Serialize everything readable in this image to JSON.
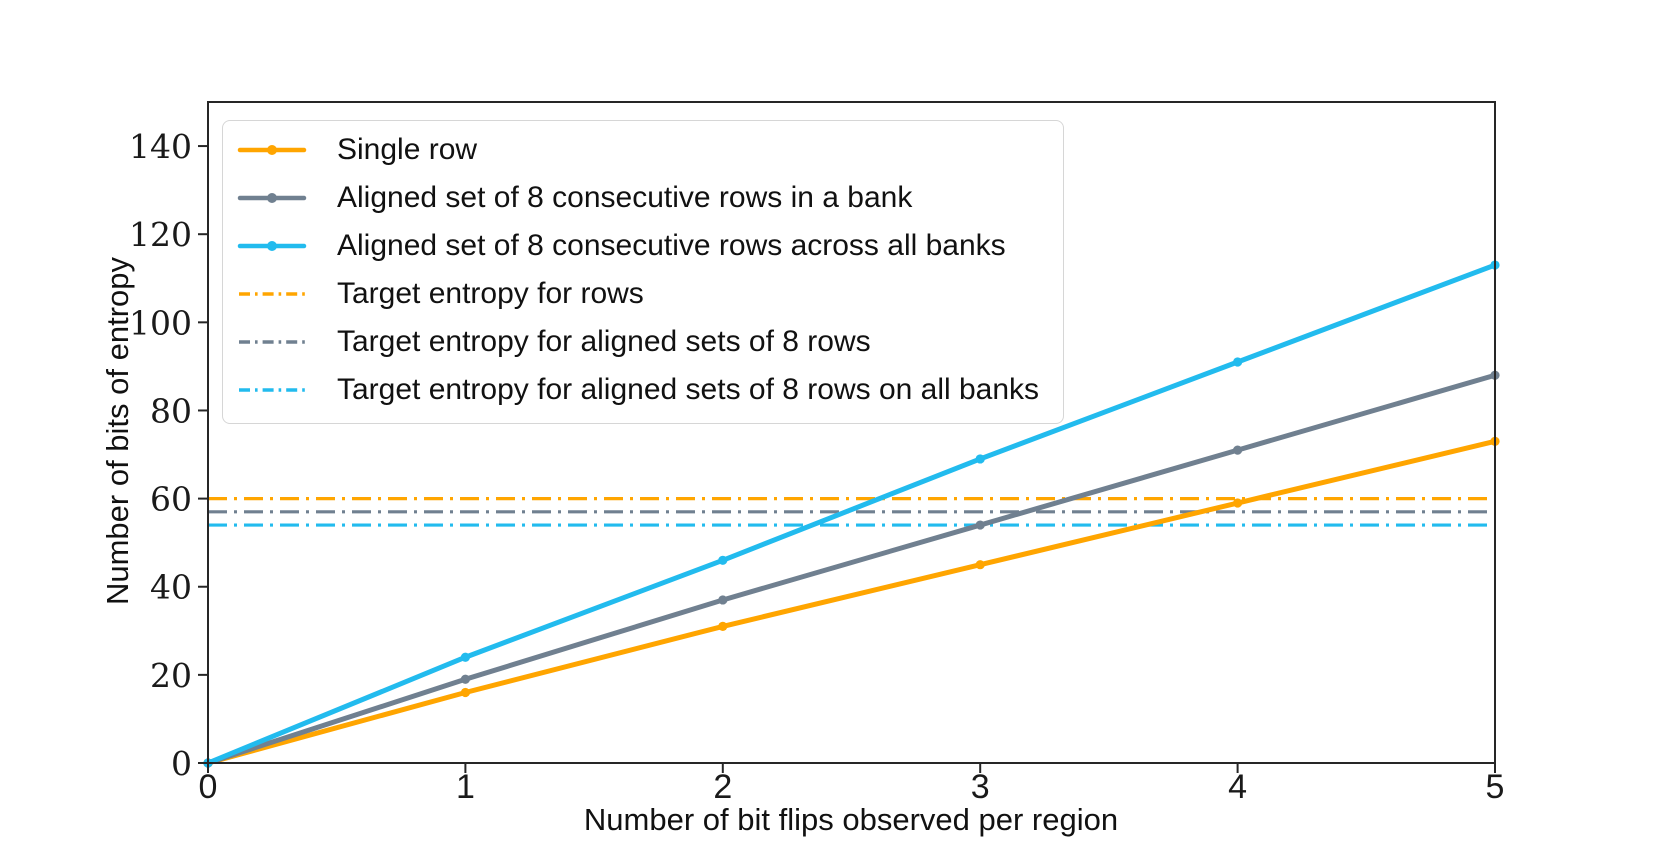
{
  "figure": {
    "background": "#ffffff",
    "spine_color": "#262626",
    "text_color": "#111111"
  },
  "chart_data": {
    "type": "line",
    "title": "",
    "xlabel": "Number of bit flips observed per region",
    "ylabel": "Number of bits of entropy",
    "xlim": [
      0,
      5
    ],
    "ylim": [
      0,
      150
    ],
    "xticks": [
      0,
      1,
      2,
      3,
      4,
      5
    ],
    "yticks": [
      0,
      20,
      40,
      60,
      80,
      100,
      120,
      140
    ],
    "grid": false,
    "legend_position": "upper-left",
    "x": [
      0,
      1,
      2,
      3,
      4,
      5
    ],
    "series": [
      {
        "name": "Single row",
        "color": "#FFA500",
        "linestyle": "solid",
        "marker": "circle",
        "values": [
          0,
          16,
          31,
          45,
          59,
          73
        ]
      },
      {
        "name": "Aligned set of 8 consecutive rows in a bank",
        "color": "#708090",
        "linestyle": "solid",
        "marker": "circle",
        "values": [
          0,
          19,
          37,
          54,
          71,
          88
        ]
      },
      {
        "name": "Aligned set of 8 consecutive rows across all banks",
        "color": "#22BBEE",
        "linestyle": "solid",
        "marker": "circle",
        "values": [
          0,
          24,
          46,
          69,
          91,
          113
        ]
      },
      {
        "name": "Target entropy for rows",
        "color": "#FFA500",
        "linestyle": "dashdot",
        "marker": "none",
        "hline": 60
      },
      {
        "name": "Target entropy for aligned sets of 8 rows",
        "color": "#708090",
        "linestyle": "dashdot",
        "marker": "none",
        "hline": 57
      },
      {
        "name": "Target entropy for aligned sets of 8 rows on all banks",
        "color": "#22BBEE",
        "linestyle": "dashdot",
        "marker": "none",
        "hline": 54
      }
    ]
  }
}
